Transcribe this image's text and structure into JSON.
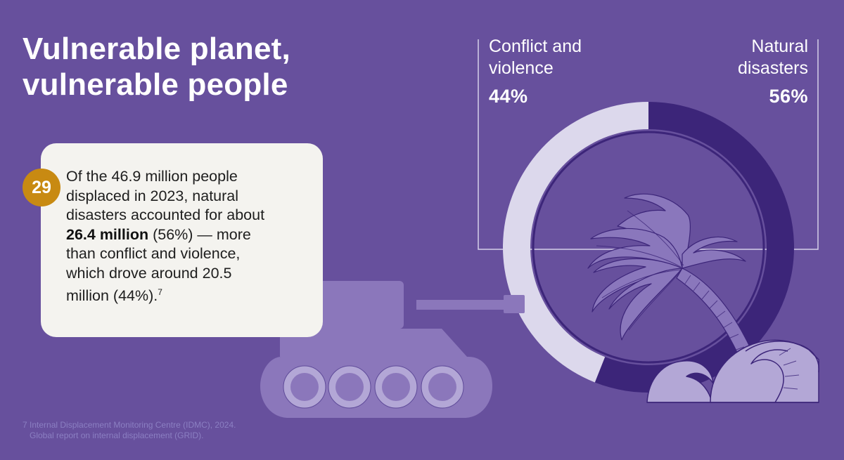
{
  "title": {
    "line1": "Vulnerable planet,",
    "line2": "vulnerable people"
  },
  "colors": {
    "background": "#67509d",
    "conflict_arc": "#dcd8ec",
    "natural_arc": "#3c2579",
    "illustration": "#8877bb",
    "badge": "#c88a12",
    "card": "#f4f3ef"
  },
  "labels": {
    "conflict": {
      "line1": "Conflict and",
      "line2": "violence",
      "percent": "44%"
    },
    "natural": {
      "line1": "Natural",
      "line2": "disasters",
      "percent": "56%"
    }
  },
  "card": {
    "badge": "29",
    "line1": "Of the 46.9 million people",
    "line2": "displaced in 2023, natural",
    "line3": "disasters accounted for about",
    "line4_bold": "26.4 million",
    "line4_rest": " (56%) — more",
    "line5": "than conflict and violence,",
    "line6": "which drove around 20.5",
    "line7": "million (44%).",
    "footnote_ref": "7"
  },
  "footnote": {
    "line1": "7 Internal Displacement Monitoring Centre (IDMC), 2024.",
    "line2": "Global report on internal displacement (GRID)."
  },
  "chart_data": {
    "type": "pie",
    "categories": [
      "Conflict and violence",
      "Natural disasters"
    ],
    "values": [
      44,
      56
    ],
    "unit": "%",
    "total": "46.9 million people displaced in 2023",
    "absolute_values_millions": [
      20.5,
      26.4
    ]
  },
  "illustration": {
    "tank": "tank-icon",
    "palm": "palm-tree-icon",
    "wave": "wave-icon"
  }
}
